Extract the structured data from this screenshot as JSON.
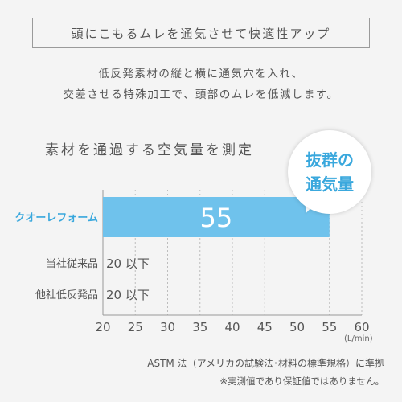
{
  "headline": "頭にこもるムレを通気させて快適性アップ",
  "description": [
    "低反発素材の縦と横に通気穴を入れ、",
    "交差させる特殊加工で、頭部のムレを低減します。"
  ],
  "bubble": {
    "line1": "抜群の",
    "line2": "通気量"
  },
  "colors": {
    "accent": "#3aa8dd",
    "bar_fill": "#6fc2ec",
    "highlight_label": "#3aa8dd",
    "grid": "#bdbdbd"
  },
  "footnote": {
    "source": "ASTM 法（アメリカの試験法･材料の標準規格）に準拠",
    "disclaimer": "※実測値であり保証値ではありません。"
  },
  "chart_data": {
    "type": "bar",
    "orientation": "horizontal",
    "title": "素材を通過する空気量を測定",
    "categories": [
      "クオーレフォーム",
      "当社従来品",
      "他社低反発品"
    ],
    "values": [
      55,
      20,
      20
    ],
    "value_labels": [
      "55",
      "20 以下",
      "20 以下"
    ],
    "x_ticks": [
      20,
      25,
      30,
      35,
      40,
      45,
      50,
      55,
      60
    ],
    "xlim": [
      20,
      60
    ],
    "x_unit": "(L/min)",
    "grid": true,
    "highlighted_category": "クオーレフォーム"
  }
}
